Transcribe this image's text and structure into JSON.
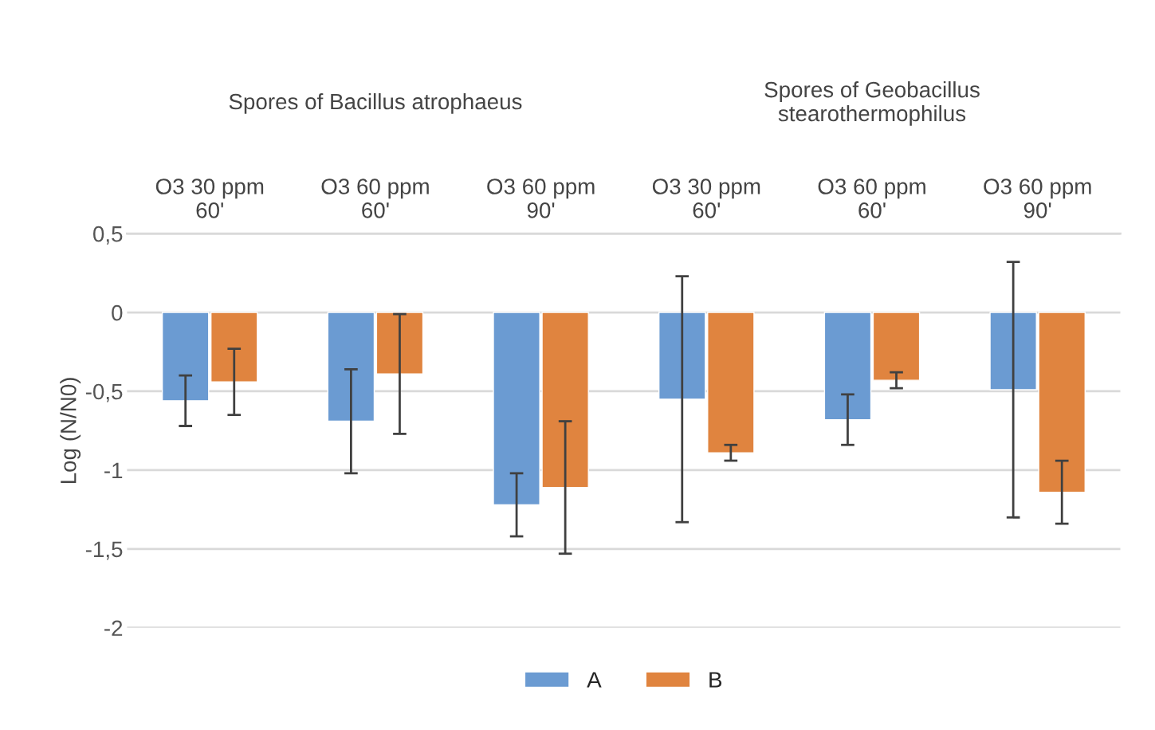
{
  "chart_data": {
    "type": "bar",
    "ylabel": "Log (N/N0)",
    "categories": [
      "O3 30 ppm\n60'",
      "O3 60 ppm\n60'",
      "O3 60 ppm\n90'",
      "O3 30 ppm\n60'",
      "O3 60 ppm\n60'",
      "O3 60 ppm\n90'"
    ],
    "annotations": [
      "Spores of Bacillus atrophaeus",
      "Spores of Geobacillus\nstearothermophilus"
    ],
    "series": [
      {
        "name": "A",
        "color": "#6b9bd2",
        "values": [
          -0.56,
          -0.69,
          -1.22,
          -0.55,
          -0.68,
          -0.49
        ],
        "errors": [
          0.16,
          0.33,
          0.2,
          0.78,
          0.16,
          0.81
        ]
      },
      {
        "name": "B",
        "color": "#e0843f",
        "values": [
          -0.44,
          -0.39,
          -1.11,
          -0.89,
          -0.43,
          -1.14
        ],
        "errors": [
          0.21,
          0.38,
          0.42,
          0.05,
          0.05,
          0.2
        ]
      }
    ],
    "ylim": [
      -2,
      0.5
    ],
    "yticks": [
      {
        "value": -2,
        "label": "-2"
      },
      {
        "value": -1.5,
        "label": "-1,5"
      },
      {
        "value": -1,
        "label": "-1"
      },
      {
        "value": -0.5,
        "label": "-0,5"
      },
      {
        "value": 0,
        "label": "0"
      },
      {
        "value": 0.5,
        "label": "0,5"
      }
    ],
    "grid": "y",
    "legend": "bottom"
  }
}
